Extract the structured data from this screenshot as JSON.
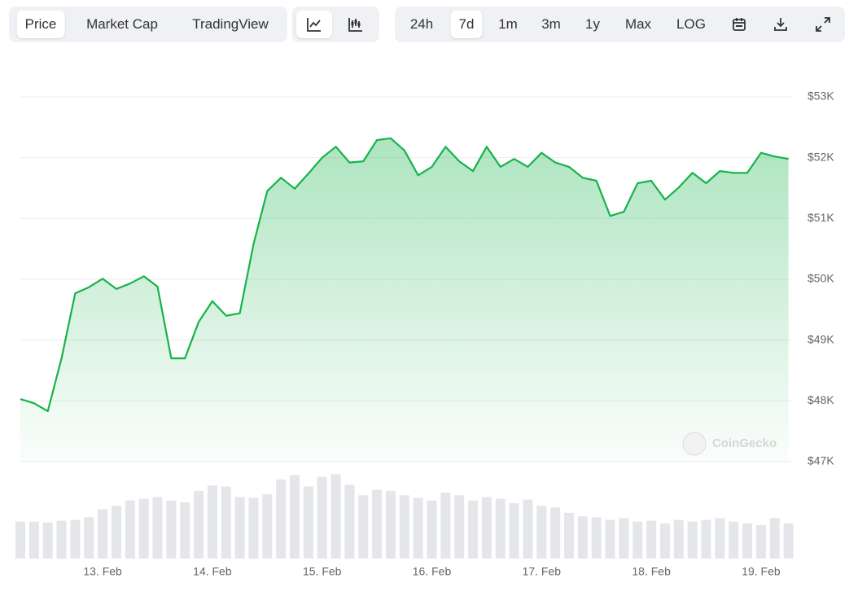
{
  "toolbar": {
    "data_tabs": [
      "Price",
      "Market Cap",
      "TradingView"
    ],
    "data_tab_active": 0,
    "ranges": [
      "24h",
      "7d",
      "1m",
      "3m",
      "1y",
      "Max",
      "LOG"
    ],
    "range_active": 1
  },
  "chart_data": {
    "type": "line",
    "color": "#16b34a",
    "grid": true,
    "watermark": "CoinGecko",
    "x": [
      12.25,
      12.375,
      12.5,
      12.625,
      12.75,
      12.875,
      13,
      13.125,
      13.25,
      13.375,
      13.5,
      13.625,
      13.75,
      13.875,
      14,
      14.125,
      14.25,
      14.375,
      14.5,
      14.625,
      14.75,
      14.875,
      15,
      15.125,
      15.25,
      15.375,
      15.5,
      15.625,
      15.75,
      15.875,
      16,
      16.125,
      16.25,
      16.375,
      16.5,
      16.625,
      16.75,
      16.875,
      17,
      17.125,
      17.25,
      17.375,
      17.5,
      17.625,
      17.75,
      17.875,
      18,
      18.125,
      18.25,
      18.375,
      18.5,
      18.625,
      18.75,
      18.875,
      19,
      19.125,
      19.25
    ],
    "values": [
      48030,
      47960,
      47830,
      48700,
      49770,
      49870,
      50010,
      49840,
      49930,
      50050,
      49880,
      48700,
      48700,
      49300,
      49640,
      49400,
      49440,
      50580,
      51450,
      51670,
      51490,
      51740,
      52000,
      52180,
      51920,
      51940,
      52290,
      52320,
      52120,
      51710,
      51850,
      52180,
      51940,
      51780,
      52180,
      51850,
      51980,
      51850,
      52080,
      51920,
      51850,
      51670,
      51620,
      51040,
      51110,
      51580,
      51620,
      51310,
      51510,
      51750,
      51580,
      51780,
      51750,
      51750,
      52080,
      52020,
      51980
    ],
    "volume": {
      "color": "#e4e6e9",
      "values": [
        42,
        42,
        41,
        43,
        44,
        47,
        56,
        60,
        66,
        68,
        70,
        66,
        64,
        77,
        83,
        82,
        70,
        69,
        73,
        90,
        95,
        82,
        93,
        96,
        84,
        72,
        78,
        77,
        72,
        69,
        66,
        75,
        72,
        66,
        70,
        68,
        63,
        67,
        60,
        58,
        52,
        48,
        47,
        44,
        46,
        42,
        43,
        40,
        44,
        42,
        44,
        46,
        42,
        40,
        38,
        46,
        40
      ]
    },
    "xlim": [
      12.25,
      19.275
    ],
    "xticks": [
      {
        "value": 13,
        "label": "13. Feb"
      },
      {
        "value": 14,
        "label": "14. Feb"
      },
      {
        "value": 15,
        "label": "15. Feb"
      },
      {
        "value": 16,
        "label": "16. Feb"
      },
      {
        "value": 17,
        "label": "17. Feb"
      },
      {
        "value": 18,
        "label": "18. Feb"
      },
      {
        "value": 19,
        "label": "19. Feb"
      }
    ],
    "ylim": [
      47000,
      53000
    ],
    "yticks": [
      {
        "value": 47000,
        "label": "$47K"
      },
      {
        "value": 48000,
        "label": "$48K"
      },
      {
        "value": 49000,
        "label": "$49K"
      },
      {
        "value": 50000,
        "label": "$50K"
      },
      {
        "value": 51000,
        "label": "$51K"
      },
      {
        "value": 52000,
        "label": "$52K"
      },
      {
        "value": 53000,
        "label": "$53K"
      }
    ],
    "y2lim": [
      0,
      100
    ]
  }
}
